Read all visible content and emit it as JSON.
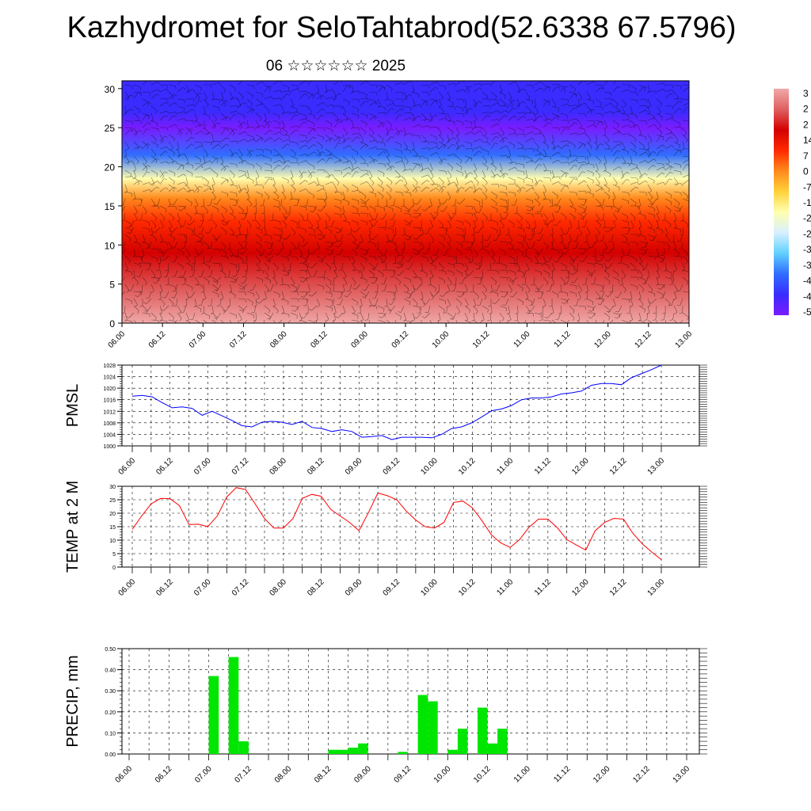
{
  "title": "Kazhydromet for SeloTahtabrod(52.6338 67.5796)",
  "subtitle": "06 ☆☆☆☆☆☆ 2025",
  "time_labels": [
    "06.00",
    "06.12",
    "07.00",
    "07.12",
    "08.00",
    "08.12",
    "09.00",
    "09.12",
    "10.00",
    "10.12",
    "11.00",
    "11.12",
    "12.00",
    "12.12",
    "13.00"
  ],
  "chart_data": [
    {
      "type": "heatmap",
      "y_ticks": [
        "0",
        "5",
        "10",
        "15",
        "20",
        "25",
        "30"
      ],
      "ylim": [
        0,
        30
      ],
      "colorbar_labels": [
        "3",
        "2",
        "2",
        "14",
        "7",
        "0",
        "-7",
        "-1",
        "-2",
        "-2",
        "-3",
        "-3",
        "-4",
        "-4",
        "-5"
      ],
      "colors": [
        "#7a1cff",
        "#3a2bff",
        "#2f6dff",
        "#5fd0ff",
        "#d8f0ff",
        "#ffffb0",
        "#ffd23a",
        "#ff8a1c",
        "#ff2a00",
        "#d40000",
        "#e06060",
        "#f0a8a8"
      ],
      "profile": [
        {
          "level": 0,
          "value": 30
        },
        {
          "level": 4,
          "value": 22
        },
        {
          "level": 9,
          "value": 12
        },
        {
          "level": 13,
          "value": 3
        },
        {
          "level": 16,
          "value": -5
        },
        {
          "level": 18.5,
          "value": -20
        },
        {
          "level": 21.5,
          "value": -40
        },
        {
          "level": 25,
          "value": -58
        },
        {
          "level": 27,
          "value": -52
        },
        {
          "level": 31,
          "value": -50
        }
      ]
    },
    {
      "type": "line",
      "ylabel": "PMSL",
      "y_ticks": [
        "1000",
        "1004",
        "1008",
        "1012",
        "1016",
        "1020",
        "1024",
        "1028"
      ],
      "ylim": [
        1000,
        1028
      ],
      "color": "#0000ff",
      "values": [
        1017.2,
        1017.5,
        1017,
        1015,
        1013.2,
        1013.5,
        1013,
        1010.6,
        1012,
        1010.4,
        1008.8,
        1007,
        1006.6,
        1008.2,
        1008.5,
        1008.2,
        1007.4,
        1008.5,
        1006.4,
        1006,
        1005,
        1005.6,
        1005,
        1003,
        1003.2,
        1003.6,
        1002.2,
        1003,
        1003,
        1003,
        1002.8,
        1004,
        1006,
        1006.6,
        1008,
        1010,
        1012.2,
        1012.8,
        1014,
        1016,
        1016.6,
        1016.6,
        1017,
        1018,
        1018.4,
        1019,
        1021,
        1021.6,
        1021.6,
        1021.2,
        1023.6,
        1025,
        1026.4,
        1028
      ]
    },
    {
      "type": "line",
      "ylabel": "TEMP at 2 M",
      "y_ticks": [
        "0",
        "5",
        "10",
        "15",
        "20",
        "25",
        "30"
      ],
      "ylim": [
        0,
        30
      ],
      "color": "#ff0000",
      "values": [
        14,
        19,
        23.5,
        25.5,
        25.4,
        22.8,
        15.8,
        15.9,
        15,
        19,
        26,
        29.5,
        28.8,
        23.5,
        18,
        14.5,
        14.5,
        18,
        25.5,
        27,
        26.3,
        21.4,
        19,
        16.6,
        13.5,
        20.2,
        27.5,
        26.5,
        25,
        20.8,
        17.5,
        15,
        14.5,
        16.6,
        24,
        24.5,
        22,
        17.3,
        12,
        9,
        7.3,
        10.2,
        14.8,
        17.8,
        17.8,
        14.6,
        10.2,
        8.2,
        6.3,
        13.5,
        16.6,
        18.1,
        17.8,
        12.5,
        8.6,
        5.5,
        2.8
      ]
    },
    {
      "type": "bar",
      "ylabel": "PRECIP, mm",
      "y_ticks": [
        "0.00",
        "0.10",
        "0.20",
        "0.30",
        "0.40",
        "0.50"
      ],
      "ylim": [
        0,
        0.5
      ],
      "color": "#00e600",
      "values": [
        0,
        0,
        0,
        0,
        0,
        0,
        0,
        0,
        0.37,
        0,
        0.46,
        0.06,
        0,
        0,
        0,
        0,
        0,
        0,
        0,
        0,
        0.02,
        0.02,
        0.03,
        0.05,
        0,
        0,
        0,
        0.01,
        0,
        0.28,
        0.25,
        0,
        0.02,
        0.12,
        0,
        0.22,
        0.05,
        0.12,
        0,
        0,
        0,
        0,
        0,
        0,
        0,
        0,
        0,
        0,
        0,
        0,
        0,
        0,
        0,
        0,
        0,
        0,
        0
      ]
    }
  ]
}
